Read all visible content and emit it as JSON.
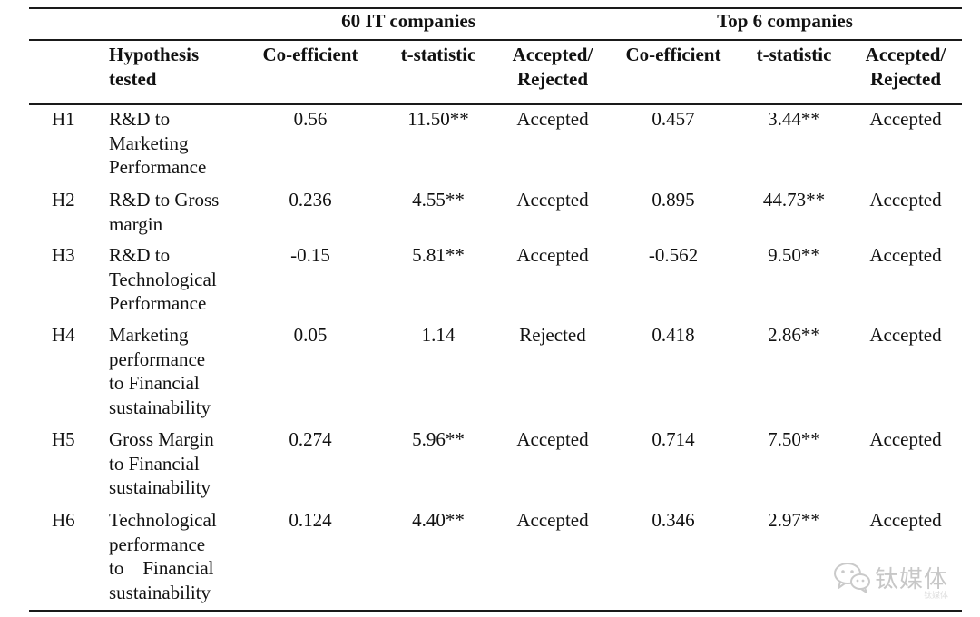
{
  "table": {
    "group_headers": {
      "group1": "60 IT companies",
      "group2": "Top 6 companies"
    },
    "column_headers": {
      "hypothesis": [
        "Hypothesis",
        "tested"
      ],
      "coef1": "Co-efficient",
      "tstat1": "t-statistic",
      "acc1": [
        "Accepted/",
        "Rejected"
      ],
      "coef2": "Co-efficient",
      "tstat2": "t-statistic",
      "acc2": [
        "Accepted/",
        "Rejected"
      ]
    },
    "rows": [
      {
        "id": "H1",
        "hypothesis": [
          "R&D to",
          "Marketing",
          "Performance"
        ],
        "coef1": "0.56",
        "tstat1": "11.50**",
        "result1": "Accepted",
        "coef2": "0.457",
        "tstat2": "3.44**",
        "result2": "Accepted"
      },
      {
        "id": "H2",
        "hypothesis": [
          "R&D to Gross",
          "margin"
        ],
        "coef1": "0.236",
        "tstat1": "4.55**",
        "result1": "Accepted",
        "coef2": "0.895",
        "tstat2": "44.73**",
        "result2": "Accepted"
      },
      {
        "id": "H3",
        "hypothesis": [
          "R&D to",
          "Technological",
          "Performance"
        ],
        "coef1": "-0.15",
        "tstat1": "5.81**",
        "result1": "Accepted",
        "coef2": "-0.562",
        "tstat2": "9.50**",
        "result2": "Accepted"
      },
      {
        "id": "H4",
        "hypothesis": [
          "Marketing",
          "performance",
          "to Financial",
          "sustainability"
        ],
        "coef1": "0.05",
        "tstat1": "1.14",
        "result1": "Rejected",
        "coef2": "0.418",
        "tstat2": "2.86**",
        "result2": "Accepted"
      },
      {
        "id": "H5",
        "hypothesis": [
          "Gross Margin",
          "to Financial",
          "sustainability"
        ],
        "coef1": "0.274",
        "tstat1": "5.96**",
        "result1": "Accepted",
        "coef2": "0.714",
        "tstat2": "7.50**",
        "result2": "Accepted"
      },
      {
        "id": "H6",
        "hypothesis": [
          "Technological",
          "performance",
          "to    Financial",
          "sustainability"
        ],
        "coef1": "0.124",
        "tstat1": "4.40**",
        "result1": "Accepted",
        "coef2": "0.346",
        "tstat2": "2.97**",
        "result2": "Accepted"
      }
    ]
  },
  "watermark": {
    "text": "钛媒体",
    "subtext": "钛媒体",
    "icon": "wechat-icon"
  }
}
